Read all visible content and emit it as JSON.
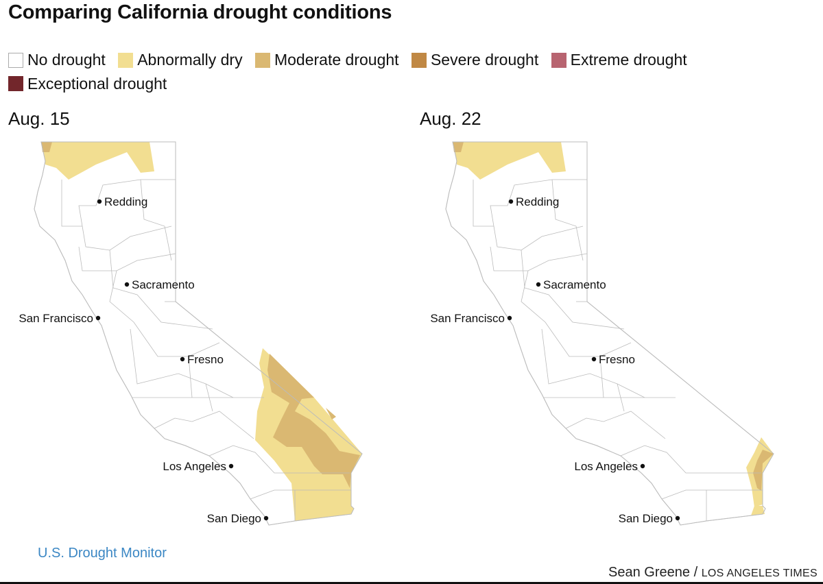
{
  "title": "Comparing California drought conditions",
  "legend": [
    {
      "label": "No drought",
      "color": "#ffffff"
    },
    {
      "label": "Abnormally dry",
      "color": "#f2de91"
    },
    {
      "label": "Moderate drought",
      "color": "#dab872"
    },
    {
      "label": "Severe drought",
      "color": "#c08844"
    },
    {
      "label": "Extreme drought",
      "color": "#b86470"
    },
    {
      "label": "Exceptional drought",
      "color": "#72262b"
    }
  ],
  "maps": [
    {
      "date": "Aug. 15"
    },
    {
      "date": "Aug. 22"
    }
  ],
  "cities": [
    "Redding",
    "Sacramento",
    "San Francisco",
    "Fresno",
    "Los Angeles",
    "San Diego"
  ],
  "source": "U.S. Drought Monitor",
  "credit": {
    "author": "Sean Greene",
    "separator": "/",
    "org": "LOS ANGELES TIMES"
  }
}
